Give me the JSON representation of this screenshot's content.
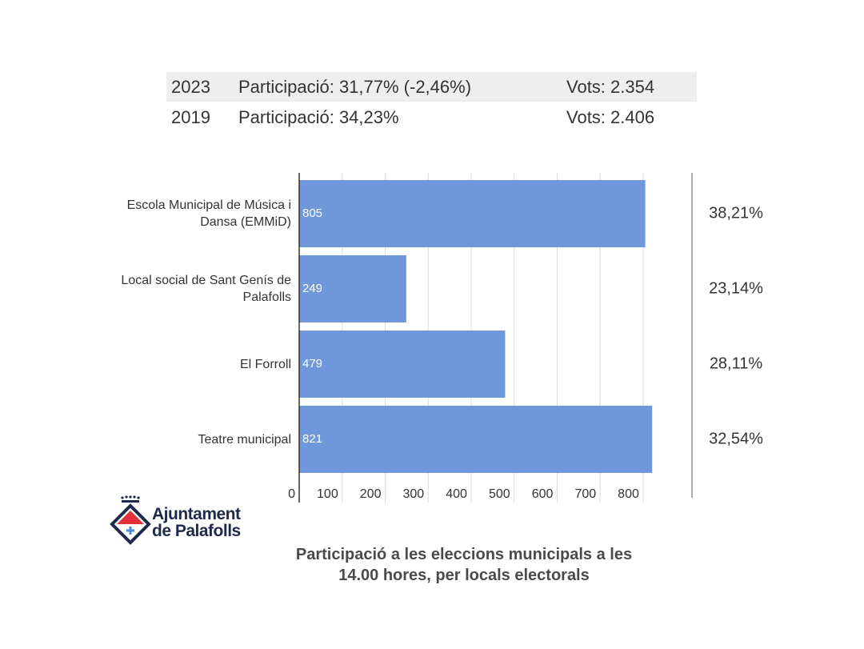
{
  "summary_table": {
    "rows": [
      [
        "2023",
        "Participació: 31,77% (-2,46%)",
        "Vots: 2.354"
      ],
      [
        "2019",
        "Participació: 34,23%",
        "Vots: 2.406"
      ]
    ]
  },
  "chart_data": {
    "type": "bar",
    "orientation": "horizontal",
    "title": "Participació a les eleccions municipals a les 14.00 hores, per locals electorals",
    "categories": [
      "Escola Municipal de Música i Dansa (EMMiD)",
      "Local social de Sant Genís de Palafolls",
      "El Forroll",
      "Teatre municipal"
    ],
    "values": [
      805,
      249,
      479,
      821
    ],
    "color": "#6f98dc",
    "xlim": [
      0,
      830
    ],
    "xticks": [
      0,
      100,
      200,
      300,
      400,
      500,
      600,
      700,
      800
    ],
    "grid": true,
    "participation": {
      "values": [
        38.21,
        23.14,
        28.11,
        32.54
      ],
      "value_labels": [
        "38,21%",
        "23,14%",
        "28,11%",
        "32,54%"
      ]
    }
  },
  "logo": [
    "Ajuntament",
    "de Palafolls"
  ]
}
